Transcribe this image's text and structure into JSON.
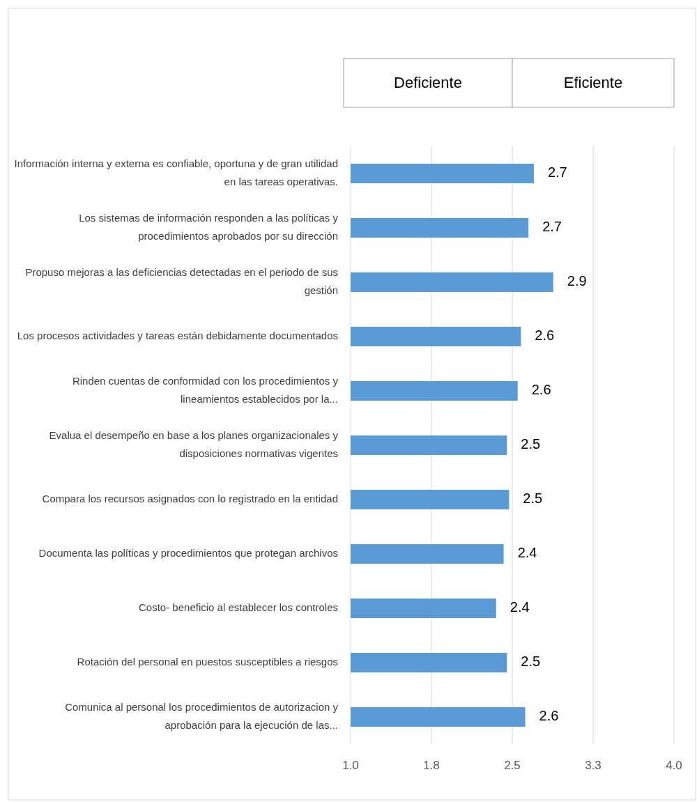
{
  "chart_data": {
    "type": "bar",
    "orientation": "horizontal",
    "categories": [
      "Información interna y externa es confiable, oportuna y de gran utilidad en las tareas operativas.",
      "Los sistemas de información responden a las políticas y procedimientos aprobados por su dirección",
      "Propuso mejoras a las deficiencias detectadas en el periodo de sus gestión",
      "Los procesos actividades y tareas están debidamente documentados",
      "Rinden cuentas de conformidad con los procedimientos y lineamientos establecidos por la...",
      "Evalua el desempeño en base a los planes organizacionales y disposiciones normativas vigentes",
      "Compara los recursos asignados con lo registrado en la entidad",
      "Documenta las políticas y procedimientos que protegan archivos",
      "Costo- beneficio al establecer los controles",
      "Rotación del personal en puestos susceptibles a riesgos",
      "Comunica al personal los procedimientos de autorizacion y aprobación para la ejecución de las..."
    ],
    "values": [
      2.7,
      2.65,
      2.88,
      2.58,
      2.55,
      2.45,
      2.47,
      2.42,
      2.35,
      2.45,
      2.62
    ],
    "value_labels": [
      "2.7",
      "2.7",
      "2.9",
      "2.6",
      "2.6",
      "2.5",
      "2.5",
      "2.4",
      "2.4",
      "2.5",
      "2.6"
    ],
    "color": "#5b9bd5",
    "xlim": [
      1,
      4
    ],
    "xticks": [
      {
        "value": 1,
        "label": "1.0"
      },
      {
        "value": 1.75,
        "label": "1.8"
      },
      {
        "value": 2.5,
        "label": "2.5"
      },
      {
        "value": 3.25,
        "label": "3.3"
      },
      {
        "value": 4,
        "label": "4.0"
      }
    ],
    "grid": "x",
    "annotations": [
      "Deficiente",
      "Eficiente"
    ]
  }
}
